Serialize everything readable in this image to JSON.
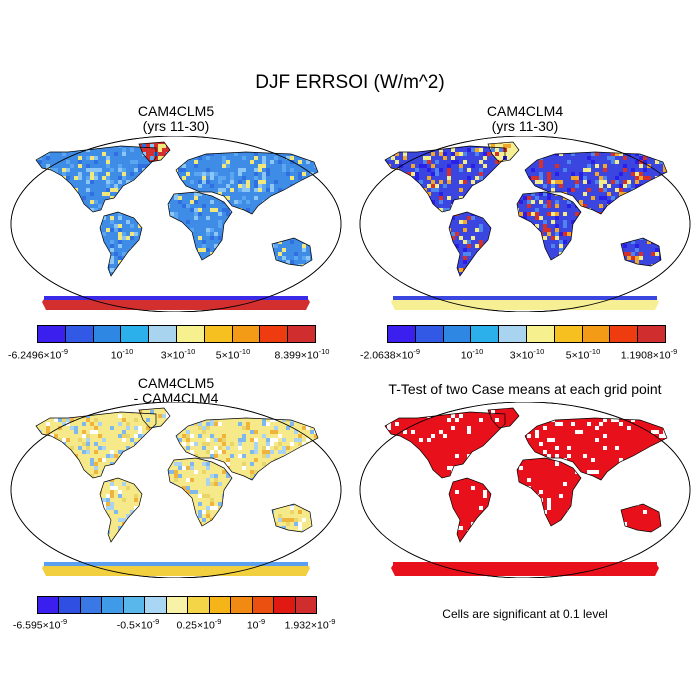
{
  "title": "DJF ERRSOI (W/m^2)",
  "panels": [
    {
      "title_line1": "CAM4CLM5",
      "title_line2": "(yrs 11-30)",
      "land_color": "#3f8ce6",
      "speckle": [
        "#5aa6f0",
        "#2f6fe0",
        "#8cc6f5",
        "#f2e77a"
      ],
      "antarctica_color": "#d42f2f",
      "antarctica_edge": "#3a2ae8",
      "greenland_color": "#d42f2f"
    },
    {
      "title_line1": "CAM4CLM4",
      "title_line2": "(yrs 11-30)",
      "land_color": "#3b45e0",
      "speckle": [
        "#2a1fe8",
        "#4f86ee",
        "#f2ec8a",
        "#f0a72a",
        "#d6302a"
      ],
      "antarctica_color": "#f7ef94",
      "antarctica_edge": "#3b45e0",
      "greenland_color": "#f7ef94"
    },
    {
      "title_line1": "CAM4CLM5",
      "title_line2": "- CAM4CLM4",
      "land_color": "#f5e98a",
      "speckle": [
        "#e8d66a",
        "#a9d3f0",
        "#7fb8ee",
        "#f0b43c",
        "#ffffff"
      ],
      "antarctica_color": "#f2cf3e",
      "antarctica_edge": "#5b9ff0",
      "greenland_color": "#f5e98a"
    },
    {
      "title_line1": "T-Test of two Case means at each grid point",
      "title_line2": "",
      "land_color": "#e8101a",
      "speckle": [
        "#ffffff"
      ],
      "antarctica_color": "#e8101a",
      "antarctica_edge": "#e8101a",
      "greenland_color": "#e8101a"
    }
  ],
  "colorbars": [
    {
      "colors": [
        "#3a1fef",
        "#3259e6",
        "#2f87e4",
        "#2bb0ec",
        "#a8d4f0",
        "#f7f08f",
        "#f5c020",
        "#f39a16",
        "#ee3b0f",
        "#d02e2e"
      ],
      "ticks": [
        {
          "mant": "-6.2496×10",
          "exp": "-9"
        },
        {
          "mant": "10",
          "exp": "-10"
        },
        {
          "mant": "3×10",
          "exp": "-10"
        },
        {
          "mant": "5×10",
          "exp": "-10"
        },
        {
          "mant": "8.399×10",
          "exp": "-10"
        }
      ]
    },
    {
      "colors": [
        "#3a1fef",
        "#3259e6",
        "#2f87e4",
        "#2bb0ec",
        "#a8d4f0",
        "#f7f08f",
        "#f5c020",
        "#f39a16",
        "#ee3b0f",
        "#d02e2e"
      ],
      "ticks": [
        {
          "mant": "-2.0638×10",
          "exp": "-9"
        },
        {
          "mant": "10",
          "exp": "-10"
        },
        {
          "mant": "3×10",
          "exp": "-10"
        },
        {
          "mant": "5×10",
          "exp": "-10"
        },
        {
          "mant": "1.1908×10",
          "exp": "-9"
        }
      ]
    },
    {
      "colors": [
        "#3a1fef",
        "#2f4fe3",
        "#3a78e6",
        "#3f9be8",
        "#5ab7ec",
        "#a9d6f2",
        "#f7f2a8",
        "#f5d548",
        "#f5b418",
        "#f08a12",
        "#ec5010",
        "#e01a12",
        "#d02e2e"
      ],
      "ticks": [
        {
          "mant": "-6.595×10",
          "exp": "-9"
        },
        {
          "mant": "-0.5×10",
          "exp": "-9"
        },
        {
          "mant": "0.25×10",
          "exp": "-9"
        },
        {
          "mant": "10",
          "exp": "-9"
        },
        {
          "mant": "1.932×10",
          "exp": "-9"
        }
      ]
    }
  ],
  "note": "Cells are significant at 0.1 level"
}
